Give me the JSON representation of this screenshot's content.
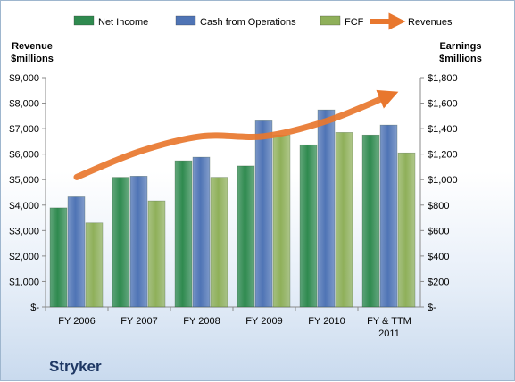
{
  "chart_data": {
    "type": "bar",
    "company": "Stryker",
    "categories": [
      "FY 2006",
      "FY 2007",
      "FY 2008",
      "FY 2009",
      "FY 2010",
      "FY & TTM 2011"
    ],
    "series": [
      {
        "name": "Net Income",
        "axis": "right",
        "color": "#2f8a4f",
        "values": [
          778,
          1018,
          1148,
          1107,
          1273,
          1350
        ]
      },
      {
        "name": "Cash from Operations",
        "axis": "right",
        "color": "#4f74b5",
        "values": [
          865,
          1027,
          1176,
          1461,
          1547,
          1428
        ]
      },
      {
        "name": "FCF",
        "axis": "right",
        "color": "#8fb05a",
        "values": [
          660,
          833,
          1018,
          1350,
          1370,
          1210
        ]
      },
      {
        "name": "Revenues",
        "type": "line",
        "axis": "left",
        "color": "#e8772e",
        "values": [
          5100,
          6100,
          6700,
          6700,
          7300,
          8300
        ]
      }
    ],
    "left_axis": {
      "title_lines": [
        "Revenue",
        "$millions"
      ],
      "ylim": [
        0,
        9000
      ],
      "ticks": [
        "$-",
        "$1,000",
        "$2,000",
        "$3,000",
        "$4,000",
        "$5,000",
        "$6,000",
        "$7,000",
        "$8,000",
        "$9,000"
      ]
    },
    "right_axis": {
      "title_lines": [
        "Earnings",
        "$millions"
      ],
      "ylim": [
        0,
        1800
      ],
      "ticks": [
        "$-",
        "$200",
        "$400",
        "$600",
        "$800",
        "$1,000",
        "$1,200",
        "$1,400",
        "$1,600",
        "$1,800"
      ]
    },
    "legend": {
      "position": "top",
      "items": [
        "Net Income",
        "Cash from Operations",
        "FCF",
        "Revenues"
      ]
    },
    "grid": false
  }
}
